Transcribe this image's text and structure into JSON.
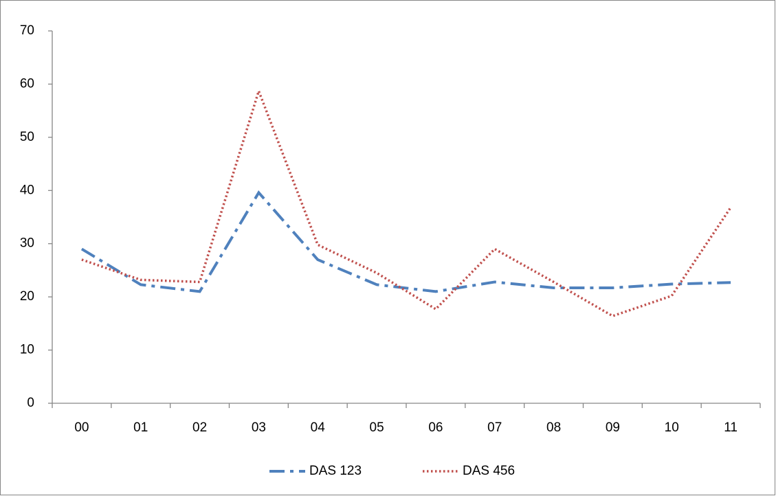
{
  "chart_data": {
    "type": "line",
    "categories": [
      "00",
      "01",
      "02",
      "03",
      "04",
      "05",
      "06",
      "07",
      "08",
      "09",
      "10",
      "11"
    ],
    "series": [
      {
        "name": "DAS 123",
        "color": "#4f81bd",
        "values": [
          29,
          22.3,
          21,
          39.6,
          27,
          22.3,
          21,
          22.8,
          21.7,
          21.7,
          22.4,
          22.7
        ]
      },
      {
        "name": "DAS 456",
        "color": "#c0504d",
        "values": [
          27,
          23.2,
          22.8,
          58.7,
          29.8,
          24.5,
          17.7,
          29,
          22.8,
          16.4,
          20.2,
          36.8
        ]
      }
    ],
    "ylim": [
      0,
      70
    ],
    "yticks": [
      0,
      10,
      20,
      30,
      40,
      50,
      60,
      70
    ],
    "grid": false,
    "legend": "bottom"
  }
}
